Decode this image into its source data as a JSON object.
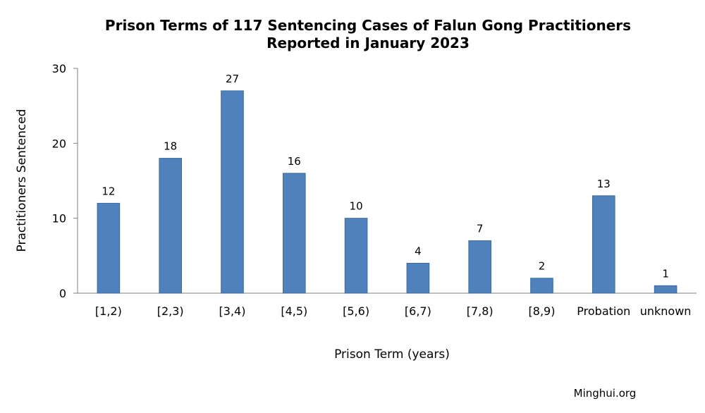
{
  "chart_data": {
    "type": "bar",
    "title_line1": "Prison Terms of 117 Sentencing Cases of Falun Gong Practitioners",
    "title_line2": "Reported in January 2023",
    "xlabel": "Prison Term (years)",
    "ylabel": "Practitioners Sentenced",
    "categories": [
      "[1,2)",
      "[2,3)",
      "[3,4)",
      "[4,5)",
      "[5,6)",
      "[6,7)",
      "[7,8)",
      "[8,9)",
      "Probation",
      "unknown"
    ],
    "values": [
      12,
      18,
      27,
      16,
      10,
      4,
      7,
      2,
      13,
      1
    ],
    "ylim": [
      0,
      30
    ],
    "yticks": [
      0,
      10,
      20,
      30
    ],
    "grid": false,
    "legend": "none",
    "bar_color": "#4F81BD",
    "bar_border_color": "#3A6AA0"
  },
  "credit": "Minghui.org"
}
